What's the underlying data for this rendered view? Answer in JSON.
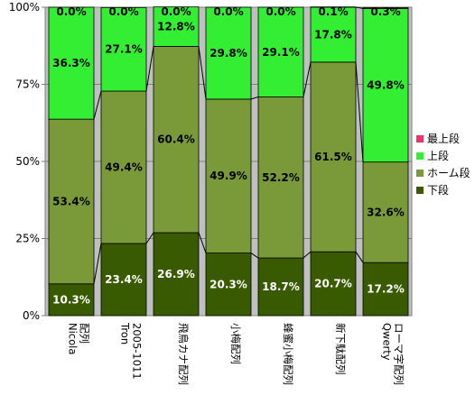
{
  "chart_data": {
    "type": "bar",
    "stacked": "percent",
    "categories": [
      [
        "Nicola",
        "配列"
      ],
      [
        "Tron",
        "2005-1011"
      ],
      [
        "飛鳥カナ配列"
      ],
      [
        "小梅配列"
      ],
      [
        "蜂蜜小梅配列"
      ],
      [
        "新下駄配列"
      ],
      [
        "Qwerty",
        "ローマ字配列"
      ]
    ],
    "series": [
      {
        "name": "下段",
        "color": "#3a5a00",
        "values": [
          10.3,
          23.4,
          26.9,
          20.3,
          18.7,
          20.7,
          17.2
        ],
        "labels": [
          "10.3%",
          "23.4%",
          "26.9%",
          "20.3%",
          "18.7%",
          "20.7%",
          "17.2%"
        ]
      },
      {
        "name": "ホーム段",
        "color": "#7a9a3a",
        "values": [
          53.4,
          49.4,
          60.4,
          49.9,
          52.2,
          61.5,
          32.6
        ],
        "labels": [
          "53.4%",
          "49.4%",
          "60.4%",
          "49.9%",
          "52.2%",
          "61.5%",
          "32.6%"
        ]
      },
      {
        "name": "上段",
        "color": "#33ee33",
        "values": [
          36.3,
          27.1,
          12.8,
          29.8,
          29.1,
          17.8,
          49.8
        ],
        "labels": [
          "36.3%",
          "27.1%",
          "12.8%",
          "29.8%",
          "29.1%",
          "17.8%",
          "49.8%"
        ]
      },
      {
        "name": "最上段",
        "color": "#ee3366",
        "values": [
          0.0,
          0.0,
          0.0,
          0.0,
          0.0,
          0.1,
          0.3
        ],
        "labels": [
          "0.0%",
          "0.0%",
          "0.0%",
          "0.0%",
          "0.0%",
          "0.1%",
          "0.3%"
        ]
      }
    ],
    "ylim": [
      0,
      100
    ],
    "yticks": [
      "0%",
      "25%",
      "50%",
      "75%",
      "100%"
    ],
    "ytick_values": [
      0,
      25,
      50,
      75,
      100
    ],
    "grid": true,
    "series_lines": true,
    "legend_position": "right",
    "legend_order": [
      "最上段",
      "上段",
      "ホーム段",
      "下段"
    ],
    "plot_background": "#c0c0c0"
  }
}
